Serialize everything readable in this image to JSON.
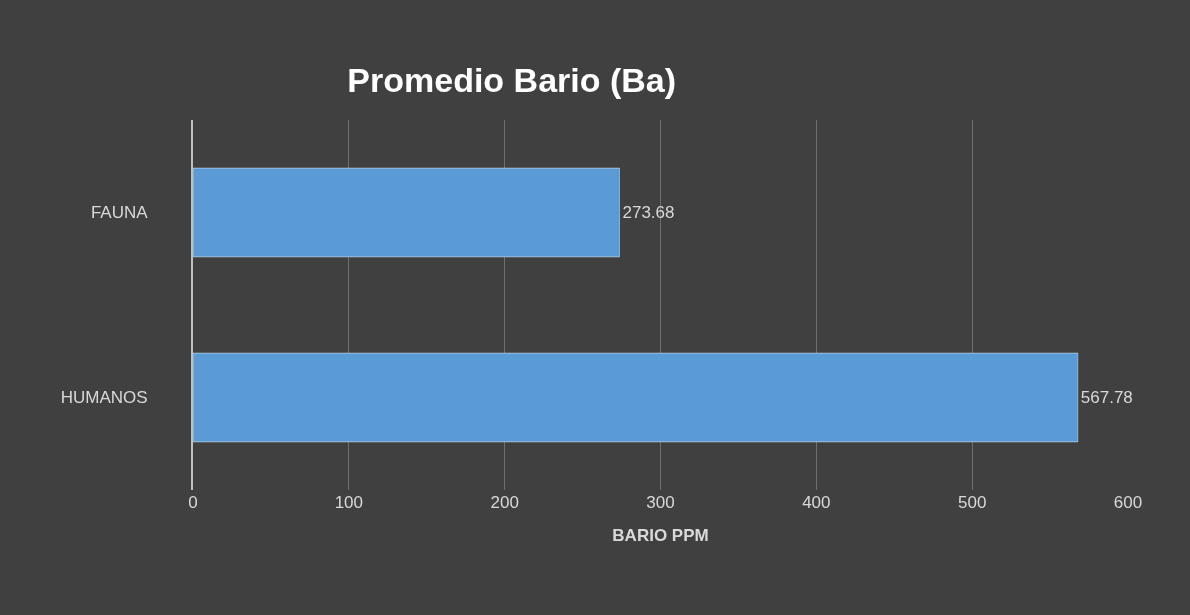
{
  "chart_data": {
    "type": "bar",
    "orientation": "horizontal",
    "title": "Promedio Bario (Ba)",
    "xlabel": "BARIO PPM",
    "categories": [
      "FAUNA",
      "HUMANOS"
    ],
    "values": [
      273.68,
      567.78
    ],
    "color": "#5b9bd5",
    "xlim": [
      0,
      600
    ],
    "xticks": [
      0,
      100,
      200,
      300,
      400,
      500,
      600
    ],
    "grid": "x",
    "data_labels": true
  }
}
